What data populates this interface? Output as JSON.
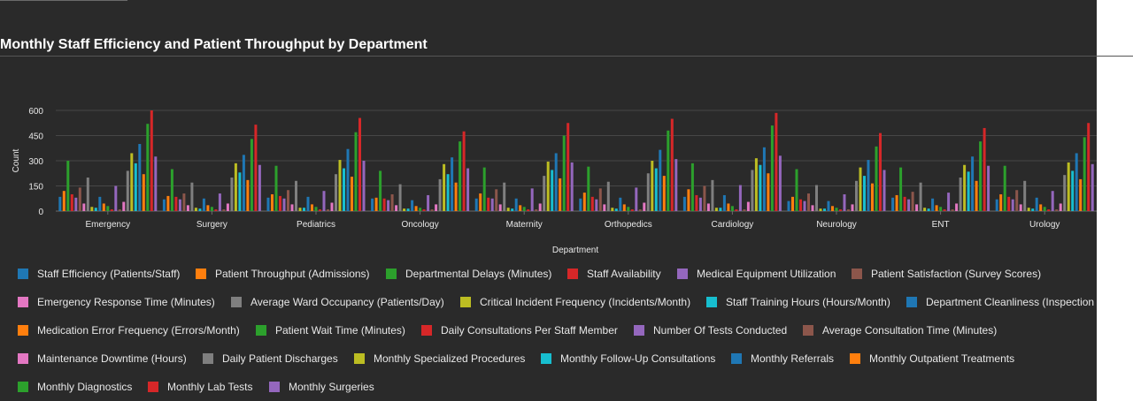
{
  "chart_data": {
    "type": "bar",
    "title": "Monthly Staff Efficiency and Patient Throughput by Department",
    "xlabel": "Department",
    "ylabel": "Count",
    "ylim": [
      0,
      600
    ],
    "yticks": [
      0,
      150,
      300,
      450,
      600
    ],
    "grid": true,
    "legend_position": "bottom",
    "categories": [
      "Emergency",
      "Surgery",
      "Pediatrics",
      "Oncology",
      "Maternity",
      "Orthopedics",
      "Cardiology",
      "Neurology",
      "ENT",
      "Urology"
    ],
    "series": [
      {
        "name": "Staff Efficiency (Patients/Staff)",
        "color": "#1f77b4",
        "values": [
          85,
          70,
          80,
          75,
          75,
          75,
          85,
          60,
          80,
          70
        ]
      },
      {
        "name": "Patient Throughput (Admissions)",
        "color": "#ff7f0e",
        "values": [
          120,
          90,
          100,
          80,
          105,
          110,
          130,
          85,
          95,
          100
        ]
      },
      {
        "name": "Departmental Delays (Minutes)",
        "color": "#2ca02c",
        "values": [
          300,
          250,
          270,
          240,
          260,
          265,
          285,
          250,
          260,
          270
        ]
      },
      {
        "name": "Staff Availability",
        "color": "#d62728",
        "values": [
          100,
          85,
          90,
          75,
          80,
          85,
          95,
          70,
          85,
          85
        ]
      },
      {
        "name": "Medical Equipment Utilization",
        "color": "#9467bd",
        "values": [
          80,
          70,
          75,
          65,
          75,
          70,
          80,
          60,
          70,
          70
        ]
      },
      {
        "name": "Patient Satisfaction (Survey Scores)",
        "color": "#8c564b",
        "values": [
          140,
          105,
          125,
          100,
          130,
          135,
          150,
          105,
          115,
          125
        ]
      },
      {
        "name": "Emergency Response Time (Minutes)",
        "color": "#e377c2",
        "values": [
          45,
          35,
          40,
          35,
          40,
          40,
          45,
          35,
          40,
          40
        ]
      },
      {
        "name": "Average Ward Occupancy (Patients/Day)",
        "color": "#7f7f7f",
        "values": [
          200,
          170,
          180,
          160,
          170,
          175,
          185,
          155,
          170,
          180
        ]
      },
      {
        "name": "Critical Incident Frequency (Incidents/Month)",
        "color": "#bcbd22",
        "values": [
          25,
          20,
          20,
          15,
          20,
          20,
          20,
          15,
          20,
          20
        ]
      },
      {
        "name": "Staff Training Hours (Hours/Month)",
        "color": "#17becf",
        "values": [
          20,
          15,
          20,
          15,
          15,
          15,
          20,
          15,
          15,
          15
        ]
      },
      {
        "name": "Department Cleanliness (Inspection Scores)",
        "color": "#1f77b4",
        "values": [
          85,
          75,
          85,
          65,
          75,
          80,
          95,
          60,
          75,
          80
        ]
      },
      {
        "name": "Medication Error Frequency (Errors/Month)",
        "color": "#ff7f0e",
        "values": [
          45,
          35,
          40,
          30,
          35,
          40,
          45,
          30,
          35,
          40
        ]
      },
      {
        "name": "Patient Wait Time (Minutes)",
        "color": "#2ca02c",
        "values": [
          30,
          25,
          25,
          20,
          25,
          25,
          30,
          20,
          25,
          25
        ]
      },
      {
        "name": "Daily Consultations Per Staff Member",
        "color": "#d62728",
        "values": [
          10,
          10,
          10,
          10,
          10,
          10,
          10,
          10,
          10,
          10
        ]
      },
      {
        "name": "Number Of Tests Conducted",
        "color": "#9467bd",
        "values": [
          150,
          105,
          120,
          95,
          135,
          140,
          155,
          100,
          110,
          120
        ]
      },
      {
        "name": "Average Consultation Time (Minutes)",
        "color": "#8c564b",
        "values": [
          10,
          10,
          10,
          10,
          10,
          10,
          10,
          10,
          10,
          10
        ]
      },
      {
        "name": "Maintenance Downtime (Hours)",
        "color": "#e377c2",
        "values": [
          55,
          45,
          50,
          40,
          45,
          50,
          55,
          40,
          45,
          45
        ]
      },
      {
        "name": "Daily Patient Discharges",
        "color": "#7f7f7f",
        "values": [
          240,
          200,
          220,
          190,
          210,
          225,
          245,
          180,
          200,
          215
        ]
      },
      {
        "name": "Monthly Specialized Procedures",
        "color": "#bcbd22",
        "values": [
          345,
          285,
          305,
          280,
          295,
          300,
          315,
          260,
          275,
          290
        ]
      },
      {
        "name": "Monthly Follow-Up Consultations",
        "color": "#17becf",
        "values": [
          285,
          230,
          255,
          220,
          245,
          255,
          275,
          210,
          235,
          240
        ]
      },
      {
        "name": "Monthly Referrals",
        "color": "#1f77b4",
        "values": [
          400,
          335,
          370,
          320,
          345,
          365,
          380,
          305,
          325,
          345
        ]
      },
      {
        "name": "Monthly Outpatient Treatments",
        "color": "#ff7f0e",
        "values": [
          220,
          185,
          205,
          170,
          195,
          210,
          225,
          165,
          180,
          190
        ]
      },
      {
        "name": "Monthly Diagnostics",
        "color": "#2ca02c",
        "values": [
          520,
          430,
          470,
          415,
          450,
          480,
          510,
          385,
          415,
          440
        ]
      },
      {
        "name": "Monthly Lab Tests",
        "color": "#d62728",
        "values": [
          600,
          515,
          555,
          475,
          525,
          550,
          585,
          465,
          495,
          525
        ]
      },
      {
        "name": "Monthly Surgeries",
        "color": "#9467bd",
        "values": [
          325,
          275,
          300,
          255,
          290,
          310,
          330,
          245,
          270,
          280
        ]
      }
    ]
  }
}
